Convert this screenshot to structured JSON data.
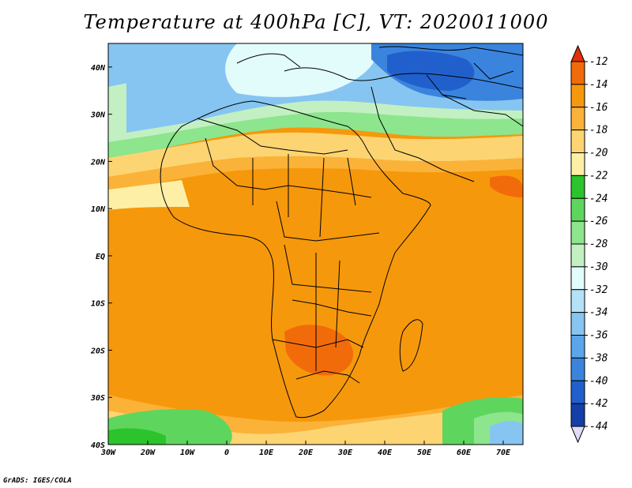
{
  "title": "Temperature at 400hPa [C], VT: 2020011000",
  "credit": "GrADS: IGES/COLA",
  "map": {
    "projection": "latlon",
    "lon_range": [
      -30,
      75
    ],
    "lat_range": [
      -40,
      45
    ],
    "lon_ticks": [
      "30W",
      "20W",
      "10W",
      "0",
      "10E",
      "20E",
      "30E",
      "40E",
      "50E",
      "60E",
      "70E"
    ],
    "lat_ticks": [
      "40N",
      "30N",
      "20N",
      "10N",
      "EQ",
      "10S",
      "20S",
      "30S",
      "40S"
    ],
    "boundaries": "country borders and coastlines"
  },
  "colorbar": {
    "labels": [
      "-12",
      "-14",
      "-16",
      "-18",
      "-20",
      "-22",
      "-24",
      "-26",
      "-28",
      "-30",
      "-32",
      "-34",
      "-36",
      "-38",
      "-40",
      "-42",
      "-44"
    ],
    "colors": [
      "#e0300a",
      "#f26b0a",
      "#f6980c",
      "#fbb239",
      "#fcd572",
      "#fdf0a6",
      "#2cc42c",
      "#5ed65e",
      "#8de58d",
      "#c2f0c2",
      "#e2fbfb",
      "#b3e2f7",
      "#86c5f1",
      "#5ba6ea",
      "#3a84dd",
      "#2160cc",
      "#133fa8",
      "#0d1f7a",
      "#e0dcf5"
    ]
  }
}
